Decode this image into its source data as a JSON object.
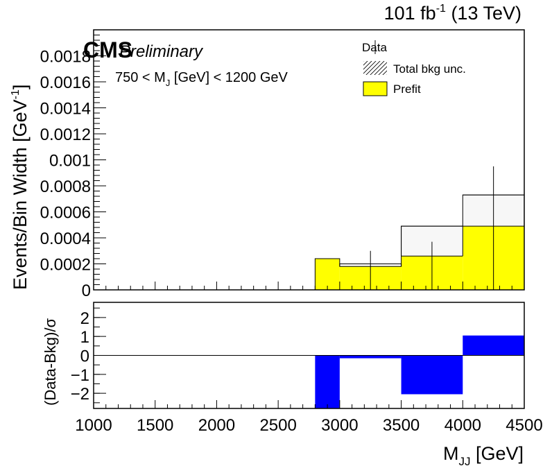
{
  "header": {
    "lumi_value": "101 fb",
    "lumi_exp": "-1",
    "energy": " (13 TeV)"
  },
  "labels": {
    "cms": "CMS",
    "preliminary": "Preliminary",
    "selection_pre": "750 < M",
    "selection_sub": "J",
    "selection_post": " [GeV] < 1200 GeV"
  },
  "chart_data": [
    {
      "type": "bar",
      "panel": "main",
      "ylabel_main": "Events/Bin Width [GeV",
      "ylabel_exp": "-1",
      "ylabel_close": "]",
      "xlim": [
        1000,
        4500
      ],
      "ylim": [
        0,
        0.002
      ],
      "bin_edges": [
        1000,
        1100,
        1200,
        1300,
        1400,
        1500,
        1600,
        1700,
        1800,
        1900,
        2000,
        2100,
        2200,
        2300,
        2400,
        2500,
        2600,
        2700,
        2800,
        3000,
        3500,
        4000,
        4500
      ],
      "series": [
        {
          "name": "Prefit",
          "color": "#ffff00",
          "values": [
            0,
            0,
            0,
            0,
            0,
            0,
            0,
            0,
            0,
            0,
            0,
            0,
            0,
            0,
            0,
            0,
            0,
            0,
            0.00024,
            0.00018,
            0.00049,
            0.00049
          ]
        },
        {
          "name": "Total bkg unc.",
          "style": "hatched",
          "band_low": [
            0,
            0,
            0,
            0,
            0,
            0,
            0,
            0,
            0,
            0,
            0,
            0,
            0,
            0,
            0,
            0,
            0,
            0,
            0.00024,
            0.00018,
            0.00026,
            0.00049
          ],
          "band_high": [
            0,
            0,
            0,
            0,
            0,
            0,
            0,
            0,
            0,
            0,
            0,
            0,
            0,
            0,
            0,
            0,
            0,
            0,
            0.00024,
            0.0002,
            0.00049,
            0.00073
          ]
        }
      ],
      "data_points": {
        "name": "Data",
        "x": [
          3250,
          3750,
          4250
        ],
        "y": [
          0.0002,
          0.00026,
          0.00073
        ],
        "err_low": [
          0.0002,
          0.00026,
          0.00073
        ],
        "err_high": [
          0.0001,
          0.00011,
          0.00022
        ],
        "xerr": 250
      },
      "yticks": [
        0,
        0.0002,
        0.0004,
        0.0006,
        0.0008,
        0.001,
        0.0012,
        0.0014,
        0.0016,
        0.0018
      ],
      "ytick_labels": [
        "0",
        "0.0002",
        "0.0004",
        "0.0006",
        "0.0008",
        "0.001",
        "0.0012",
        "0.0014",
        "0.0016",
        "0.0018"
      ],
      "legend": [
        "Data",
        "Total bkg unc.",
        "Prefit"
      ],
      "legend_position": "top-right"
    },
    {
      "type": "bar",
      "panel": "ratio",
      "ylabel": "(Data-Bkg)/σ",
      "xlim": [
        1000,
        4500
      ],
      "ylim": [
        -2.8,
        2.8
      ],
      "bin_edges": [
        1000,
        2800,
        3000,
        3500,
        4000,
        4500
      ],
      "values": [
        0,
        -2.9,
        -0.15,
        -2.05,
        1.05
      ],
      "color": "#0000ff",
      "yticks": [
        -2,
        -1,
        0,
        1,
        2
      ],
      "ytick_labels": [
        "−2",
        "−1",
        "0",
        "1",
        "2"
      ],
      "xticks": [
        1000,
        1500,
        2000,
        2500,
        3000,
        3500,
        4000,
        4500
      ],
      "xtick_labels": [
        "1000",
        "1500",
        "2000",
        "2500",
        "3000",
        "3500",
        "4000",
        "4500"
      ],
      "xlabel_main": "M",
      "xlabel_sub": "JJ",
      "xlabel_post": " [GeV]"
    }
  ]
}
